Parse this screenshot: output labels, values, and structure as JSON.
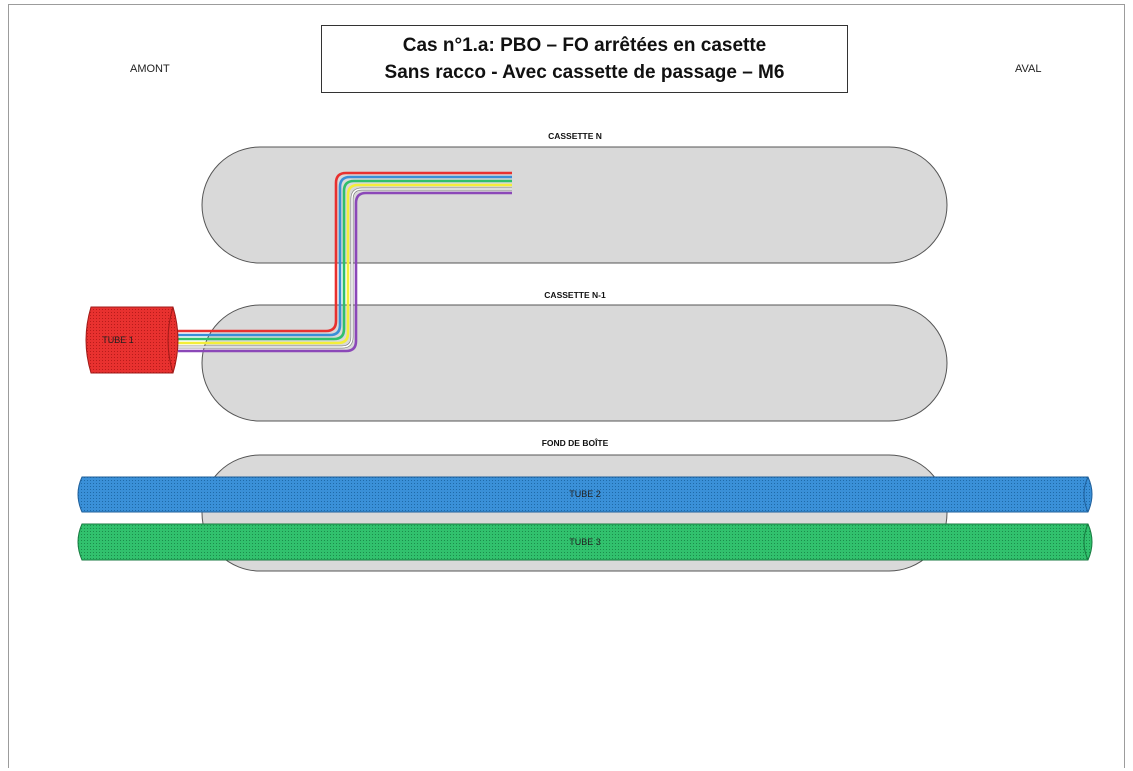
{
  "title": {
    "line1": "Cas n°1.a: PBO – FO arrêtées en casette",
    "line2": "Sans racco - Avec cassette de passage – M6"
  },
  "labels": {
    "amont": "AMONT",
    "aval": "AVAL",
    "cassette_n": "CASSETTE N",
    "cassette_n1": "CASSETTE N-1",
    "fond": "FOND DE BOÎTE"
  },
  "tubes": {
    "tube1": "TUBE 1",
    "tube2": "TUBE 2",
    "tube3": "TUBE 3"
  },
  "colors": {
    "cassette_fill": "#d9d9d9",
    "tube1": "#e8312f",
    "tube2": "#3a8fd6",
    "tube3": "#2fbf6b",
    "fibers": [
      "#e8312f",
      "#3a8fd6",
      "#2fbf6b",
      "#f3ee3a",
      "#ffffff",
      "#8b48b8"
    ]
  }
}
